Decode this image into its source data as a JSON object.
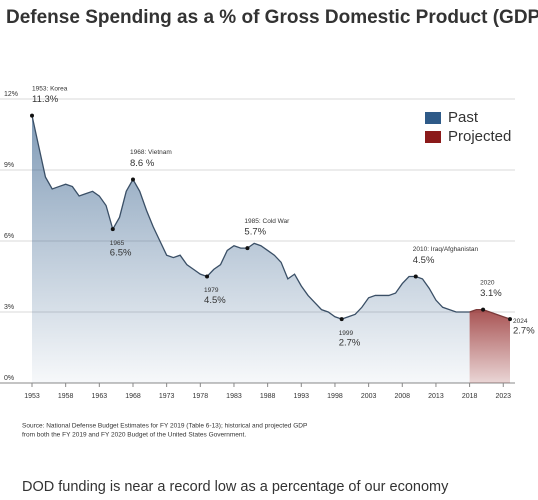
{
  "chart_data": {
    "type": "area",
    "title": "Defense Spending as a % of Gross Domestic Product (GDP)",
    "series": [
      {
        "name": "Past",
        "color": "#2e5a88",
        "x": [
          1953,
          1954,
          1955,
          1956,
          1957,
          1958,
          1959,
          1960,
          1961,
          1962,
          1963,
          1964,
          1965,
          1966,
          1967,
          1968,
          1969,
          1970,
          1971,
          1972,
          1973,
          1974,
          1975,
          1976,
          1977,
          1978,
          1979,
          1980,
          1981,
          1982,
          1983,
          1984,
          1985,
          1986,
          1987,
          1988,
          1989,
          1990,
          1991,
          1992,
          1993,
          1994,
          1995,
          1996,
          1997,
          1998,
          1999,
          2000,
          2001,
          2002,
          2003,
          2004,
          2005,
          2006,
          2007,
          2008,
          2009,
          2010,
          2011,
          2012,
          2013,
          2014,
          2015,
          2016,
          2017,
          2018
        ],
        "values": [
          11.3,
          10.0,
          8.7,
          8.2,
          8.3,
          8.4,
          8.3,
          7.9,
          8.0,
          8.1,
          7.9,
          7.5,
          6.5,
          7.0,
          8.1,
          8.6,
          8.1,
          7.3,
          6.6,
          6.0,
          5.4,
          5.3,
          5.4,
          5.0,
          4.8,
          4.6,
          4.5,
          4.8,
          5.0,
          5.6,
          5.8,
          5.7,
          5.7,
          5.9,
          5.8,
          5.6,
          5.4,
          5.1,
          4.4,
          4.6,
          4.1,
          3.7,
          3.4,
          3.1,
          3.0,
          2.8,
          2.7,
          2.8,
          2.9,
          3.2,
          3.6,
          3.7,
          3.7,
          3.7,
          3.8,
          4.2,
          4.5,
          4.5,
          4.4,
          4.0,
          3.5,
          3.2,
          3.1,
          3.0,
          3.0,
          3.0
        ]
      },
      {
        "name": "Projected",
        "color": "#8b1a1a",
        "x": [
          2018,
          2019,
          2020,
          2021,
          2022,
          2023,
          2024
        ],
        "values": [
          3.0,
          3.1,
          3.1,
          3.0,
          2.9,
          2.8,
          2.7
        ]
      }
    ],
    "annotations": [
      {
        "label": "1953: Korea",
        "x": 1953,
        "y": 11.3,
        "value_label": "11.3%"
      },
      {
        "label": "1965",
        "x": 1965,
        "y": 6.5,
        "value_label": "6.5%"
      },
      {
        "label": "1968: Vietnam",
        "x": 1968,
        "y": 8.6,
        "value_label": "8.6 %"
      },
      {
        "label": "1979",
        "x": 1979,
        "y": 4.5,
        "value_label": "4.5%"
      },
      {
        "label": "1985: Cold War",
        "x": 1985,
        "y": 5.7,
        "value_label": "5.7%"
      },
      {
        "label": "1999",
        "x": 1999,
        "y": 2.7,
        "value_label": "2.7%"
      },
      {
        "label": "2010: Iraq/Afghanistan",
        "x": 2010,
        "y": 4.5,
        "value_label": "4.5%"
      },
      {
        "label": "2020",
        "x": 2020,
        "y": 3.1,
        "value_label": "3.1%"
      },
      {
        "label": "2024",
        "x": 2024,
        "y": 2.7,
        "value_label": "2.7%"
      }
    ],
    "xlim": [
      1953,
      2024
    ],
    "xticks": [
      1953,
      1958,
      1963,
      1968,
      1973,
      1978,
      1983,
      1988,
      1993,
      1998,
      2003,
      2008,
      2013,
      2018,
      2023
    ],
    "ylim": [
      0,
      12
    ],
    "yticks": [
      {
        "value": 0,
        "label": "0%"
      },
      {
        "value": 3,
        "label": "3%"
      },
      {
        "value": 6,
        "label": "6%"
      },
      {
        "value": 9,
        "label": "9%"
      },
      {
        "value": 12,
        "label": "12%"
      }
    ],
    "grid": true,
    "legend": "upper right",
    "source_lines": [
      "Source: National Defense Budget Estimates for FY 2019 (Table 6-13); historical and projected GDP",
      "from both the FY 2019 and FY 2020 Budget of the United States Government."
    ],
    "caption": "DOD funding is near a record low as a percentage of our economy"
  }
}
